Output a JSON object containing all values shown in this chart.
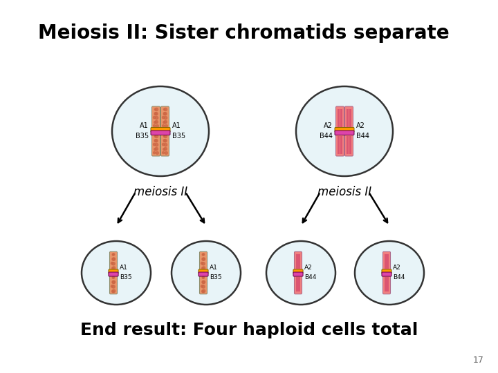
{
  "title": "Meiosis II: Sister chromatids separate",
  "subtitle": "End result: Four haploid cells total",
  "page_number": "17",
  "background": "#ffffff",
  "cell_bg": "#e8f4f8",
  "cell_border": "#333333",
  "meiosis_text": "meiosis II",
  "chr_peach": "#e8956a",
  "chr_peach_spot": "#cc6644",
  "chr_pink": "#f08080",
  "chr_pink_stripe": "#cc3366",
  "centromere_orange": "#ff9900",
  "centromere_magenta": "#dd44aa",
  "label_A1_B35_l": [
    "A1",
    "B35"
  ],
  "label_A1_B35_r": [
    "A1",
    "B35"
  ],
  "label_A2_B44_l": [
    "A2",
    "B44"
  ],
  "label_A2_B44_r": [
    "A2",
    "B44"
  ]
}
